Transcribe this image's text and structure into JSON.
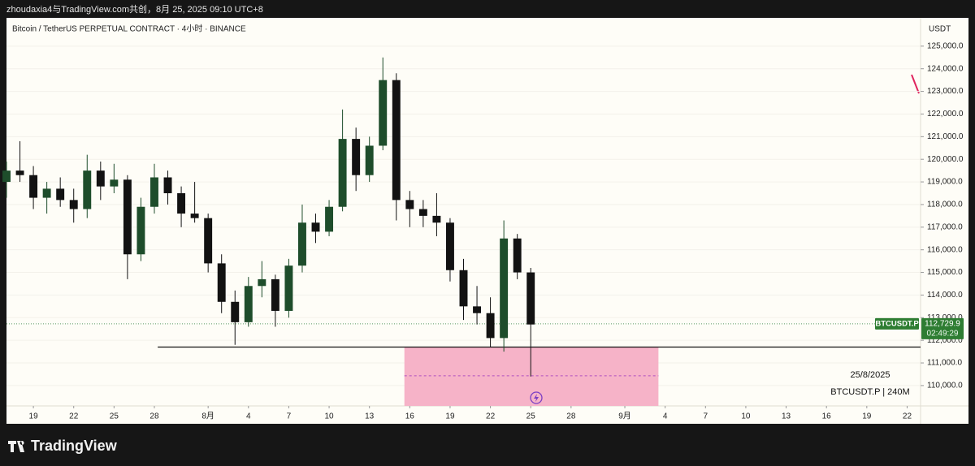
{
  "header": "zhoudaxia4与TradingView.com共创，8月 25, 2025 09:10 UTC+8",
  "footer": "TradingView",
  "chart_data": {
    "type": "candlestick",
    "title": "Bitcoin / TetherUS PERPETUAL CONTRACT · 4小时 · BINANCE",
    "y_unit": "USDT",
    "x": [
      -15,
      -14,
      -13,
      -12,
      -11,
      -10,
      -9,
      -8,
      -7,
      -6,
      -5,
      -4,
      -3,
      -2,
      -1,
      0,
      1,
      2,
      3,
      4,
      5,
      6,
      7,
      8,
      9,
      10,
      11,
      12,
      13,
      14,
      15,
      16,
      17,
      18,
      19,
      20,
      21,
      22,
      23,
      24
    ],
    "open": [
      119000,
      119500,
      119300,
      118300,
      118700,
      118200,
      117800,
      119500,
      118800,
      119100,
      115800,
      117900,
      119200,
      118500,
      117600,
      117400,
      115400,
      113700,
      112800,
      114400,
      114700,
      113300,
      115300,
      117200,
      116800,
      117900,
      120900,
      119300,
      120600,
      123500,
      118200,
      117800,
      117500,
      117200,
      115100,
      113500,
      113200,
      112100,
      116500,
      115000
    ],
    "high": [
      119900,
      120800,
      119700,
      119000,
      119200,
      118700,
      120200,
      119900,
      119800,
      119300,
      118300,
      119800,
      119500,
      118800,
      119000,
      117600,
      115800,
      114200,
      114800,
      115500,
      114900,
      115600,
      118000,
      117600,
      118200,
      122200,
      121400,
      121000,
      124500,
      123800,
      118600,
      118200,
      118500,
      117400,
      115600,
      114400,
      113900,
      117300,
      116700,
      115200
    ],
    "low": [
      118300,
      119000,
      117800,
      117600,
      117900,
      117200,
      117400,
      118200,
      118500,
      114700,
      115500,
      117600,
      118000,
      117000,
      117200,
      115000,
      113200,
      111800,
      112600,
      113900,
      112600,
      113000,
      115000,
      116300,
      116600,
      117700,
      118600,
      119000,
      120400,
      117300,
      117000,
      117000,
      116600,
      114600,
      112900,
      112700,
      111700,
      111500,
      114700,
      110400
    ],
    "close": [
      119500,
      119300,
      118300,
      118700,
      118200,
      117800,
      119500,
      118800,
      119100,
      115800,
      117900,
      119200,
      118500,
      117600,
      117400,
      115400,
      113700,
      112800,
      114400,
      114700,
      113300,
      115300,
      117200,
      116800,
      117900,
      120900,
      119300,
      120600,
      123500,
      118200,
      117800,
      117500,
      117200,
      115100,
      113500,
      113200,
      112100,
      116500,
      115000,
      112700
    ],
    "up_color": "#1e4d2b",
    "down_color": "#121212",
    "xlim": [
      -15,
      53
    ],
    "xticks": [
      {
        "value": -13,
        "label": "19"
      },
      {
        "value": -10,
        "label": "22"
      },
      {
        "value": -7,
        "label": "25"
      },
      {
        "value": -4,
        "label": "28"
      },
      {
        "value": 0,
        "label": "8月"
      },
      {
        "value": 3,
        "label": "4"
      },
      {
        "value": 6,
        "label": "7"
      },
      {
        "value": 9,
        "label": "10"
      },
      {
        "value": 12,
        "label": "13"
      },
      {
        "value": 15,
        "label": "16"
      },
      {
        "value": 18,
        "label": "19"
      },
      {
        "value": 21,
        "label": "22"
      },
      {
        "value": 24,
        "label": "25"
      },
      {
        "value": 27,
        "label": "28"
      },
      {
        "value": 31,
        "label": "9月"
      },
      {
        "value": 34,
        "label": "4"
      },
      {
        "value": 37,
        "label": "7"
      },
      {
        "value": 40,
        "label": "10"
      },
      {
        "value": 43,
        "label": "13"
      },
      {
        "value": 46,
        "label": "16"
      },
      {
        "value": 49,
        "label": "19"
      },
      {
        "value": 52,
        "label": "22"
      }
    ],
    "ylim": [
      109100,
      126250
    ],
    "yticks": [
      {
        "value": 110000,
        "label": "110,000.0"
      },
      {
        "value": 111000,
        "label": "111,000.0"
      },
      {
        "value": 112000,
        "label": "112,000.0"
      },
      {
        "value": 113000,
        "label": "113,000.0"
      },
      {
        "value": 114000,
        "label": "114,000.0"
      },
      {
        "value": 115000,
        "label": "115,000.0"
      },
      {
        "value": 116000,
        "label": "116,000.0"
      },
      {
        "value": 117000,
        "label": "117,000.0"
      },
      {
        "value": 118000,
        "label": "118,000.0"
      },
      {
        "value": 119000,
        "label": "119,000.0"
      },
      {
        "value": 120000,
        "label": "120,000.0"
      },
      {
        "value": 121000,
        "label": "121,000.0"
      },
      {
        "value": 122000,
        "label": "122,000.0"
      },
      {
        "value": 123000,
        "label": "123,000.0"
      },
      {
        "value": 124000,
        "label": "124,000.0"
      },
      {
        "value": 125000,
        "label": "125,000.0"
      }
    ],
    "support_line": {
      "x0": -3.75,
      "value": 111700
    },
    "zone": {
      "x": [
        14.6,
        33.5
      ],
      "values": [
        109100,
        111700
      ],
      "mid": 110430,
      "color": "#f6b3c8"
    },
    "last_price": {
      "symbol": "BTCUSDT.P",
      "value": 112729.9,
      "label": "112,729.9",
      "countdown": "02:49:29",
      "color": "#2e7d32"
    },
    "note": [
      "25/8/2025",
      "BTCUSDT.P | 240M"
    ]
  }
}
